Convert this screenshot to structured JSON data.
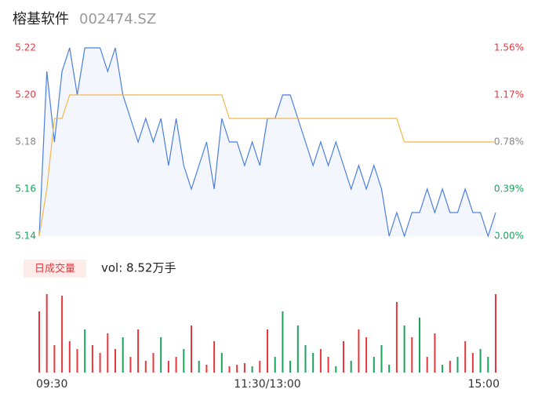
{
  "header": {
    "name": "榕基软件",
    "code": "002474.SZ"
  },
  "volume_legend": {
    "badge": "日成交量",
    "text": "vol: 8.52万手"
  },
  "chart_data": [
    {
      "type": "line",
      "x": [
        0,
        4,
        8,
        12,
        16,
        20,
        24,
        28,
        32,
        36,
        40,
        44,
        48,
        52,
        56,
        60,
        64,
        68,
        72,
        76,
        80,
        84,
        88,
        92,
        96,
        100,
        104,
        108,
        112,
        116,
        120,
        124,
        128,
        132,
        136,
        140,
        144,
        148,
        152,
        156,
        160,
        164,
        168,
        172,
        176,
        180,
        184,
        188,
        192,
        196,
        200,
        204,
        208,
        212,
        216,
        220,
        224,
        228,
        232,
        236,
        240
      ],
      "series": [
        {
          "name": "price",
          "color": "#4a7fe0",
          "values": [
            5.14,
            5.21,
            5.18,
            5.21,
            5.22,
            5.2,
            5.22,
            5.22,
            5.22,
            5.21,
            5.22,
            5.2,
            5.19,
            5.18,
            5.19,
            5.18,
            5.19,
            5.17,
            5.19,
            5.17,
            5.16,
            5.17,
            5.18,
            5.16,
            5.19,
            5.18,
            5.18,
            5.17,
            5.18,
            5.17,
            5.19,
            5.19,
            5.2,
            5.2,
            5.19,
            5.18,
            5.17,
            5.18,
            5.17,
            5.18,
            5.17,
            5.16,
            5.17,
            5.16,
            5.17,
            5.16,
            5.14,
            5.15,
            5.14,
            5.15,
            5.15,
            5.16,
            5.15,
            5.16,
            5.15,
            5.15,
            5.16,
            5.15,
            5.15,
            5.14,
            5.15
          ]
        },
        {
          "name": "average",
          "color": "#f2b84b",
          "values": [
            5.14,
            5.16,
            5.19,
            5.19,
            5.2,
            5.2,
            5.2,
            5.2,
            5.2,
            5.2,
            5.2,
            5.2,
            5.2,
            5.2,
            5.2,
            5.2,
            5.2,
            5.2,
            5.2,
            5.2,
            5.2,
            5.2,
            5.2,
            5.2,
            5.2,
            5.19,
            5.19,
            5.19,
            5.19,
            5.19,
            5.19,
            5.19,
            5.19,
            5.19,
            5.19,
            5.19,
            5.19,
            5.19,
            5.19,
            5.19,
            5.19,
            5.19,
            5.19,
            5.19,
            5.19,
            5.19,
            5.19,
            5.19,
            5.18,
            5.18,
            5.18,
            5.18,
            5.18,
            5.18,
            5.18,
            5.18,
            5.18,
            5.18,
            5.18,
            5.18,
            5.18
          ]
        }
      ],
      "area_color": "#f3f6fc",
      "xlim": [
        0,
        240
      ],
      "ylim": [
        5.14,
        5.22
      ],
      "yticks": [
        {
          "value": 5.22,
          "label": "5.22"
        },
        {
          "value": 5.2,
          "label": "5.20"
        },
        {
          "value": 5.18,
          "label": "5.18"
        },
        {
          "value": 5.16,
          "label": "5.16"
        },
        {
          "value": 5.14,
          "label": "5.14"
        }
      ],
      "ytick_colors": [
        "#e8383d",
        "#e8383d",
        "#888888",
        "#1aa35b",
        "#1aa35b"
      ],
      "y2lim": [
        0,
        1.56
      ],
      "y2ticks": [
        {
          "value": 1.56,
          "label": "1.56%"
        },
        {
          "value": 1.17,
          "label": "1.17%"
        },
        {
          "value": 0.78,
          "label": "0.78%"
        },
        {
          "value": 0.39,
          "label": "0.39%"
        },
        {
          "value": 0,
          "label": "0.00%"
        }
      ],
      "y2tick_colors": [
        "#e8383d",
        "#e8383d",
        "#888888",
        "#1aa35b",
        "#1aa35b"
      ]
    },
    {
      "type": "bar",
      "x": [
        0,
        4,
        8,
        12,
        16,
        20,
        24,
        28,
        32,
        36,
        40,
        44,
        48,
        52,
        56,
        60,
        64,
        68,
        72,
        76,
        80,
        84,
        88,
        92,
        96,
        100,
        104,
        108,
        112,
        116,
        120,
        124,
        128,
        132,
        136,
        140,
        144,
        148,
        152,
        156,
        160,
        164,
        168,
        172,
        176,
        180,
        184,
        188,
        192,
        196,
        200,
        204,
        208,
        212,
        216,
        220,
        224,
        228,
        232,
        236,
        240
      ],
      "values": [
        78,
        100,
        35,
        98,
        40,
        30,
        55,
        35,
        25,
        50,
        30,
        45,
        20,
        55,
        15,
        25,
        45,
        15,
        20,
        30,
        60,
        15,
        10,
        40,
        25,
        8,
        10,
        12,
        8,
        15,
        55,
        20,
        78,
        15,
        60,
        35,
        25,
        30,
        20,
        8,
        40,
        15,
        55,
        45,
        20,
        35,
        10,
        90,
        60,
        45,
        70,
        20,
        50,
        10,
        15,
        20,
        40,
        25,
        30,
        20,
        100
      ],
      "directions": [
        "up",
        "up",
        "up",
        "up",
        "up",
        "up",
        "down",
        "up",
        "up",
        "up",
        "up",
        "down",
        "up",
        "up",
        "up",
        "up",
        "down",
        "up",
        "up",
        "down",
        "up",
        "down",
        "up",
        "up",
        "down",
        "up",
        "up",
        "up",
        "down",
        "up",
        "up",
        "down",
        "down",
        "down",
        "down",
        "down",
        "down",
        "up",
        "up",
        "down",
        "up",
        "down",
        "up",
        "up",
        "down",
        "down",
        "down",
        "up",
        "down",
        "up",
        "down",
        "up",
        "up",
        "down",
        "up",
        "down",
        "up",
        "up",
        "down",
        "down",
        "up"
      ],
      "up_color": "#e8383d",
      "down_color": "#1aa35b",
      "xlim": [
        0,
        240
      ],
      "ylim": [
        0,
        100
      ],
      "xticks": [
        {
          "value": 0,
          "label": "09:30"
        },
        {
          "value": 120,
          "label": "11:30/13:00"
        },
        {
          "value": 240,
          "label": "15:00"
        }
      ]
    }
  ]
}
